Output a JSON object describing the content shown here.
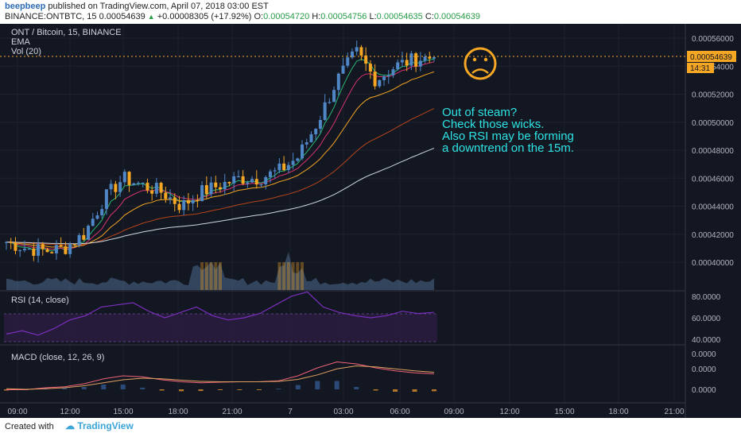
{
  "header": {
    "author": "beepbeep",
    "published": "published on TradingView.com, April 07, 2018 03:00 EST",
    "symbol_line": "BINANCE:ONTBTC, 15  0.00054639",
    "change": "+0.00008305 (+17.92%)",
    "o_label": "O:",
    "o_value": "0.00054720",
    "h_label": "H:",
    "h_value": "0.00054756",
    "l_label": "L:",
    "l_value": "0.00054635",
    "c_label": "C:",
    "c_value": "0.00054639"
  },
  "legend": {
    "title": "ONT / Bitcoin, 15, BINANCE",
    "ema": "EMA",
    "vol": "Vol (20)",
    "rsi": "RSI (14, close)",
    "macd": "MACD (close, 12, 26, 9)"
  },
  "annotation": {
    "emoji": "☹",
    "lines": [
      "Out of steam?",
      "Check those wicks.",
      "Also RSI may be forming",
      "a downtrend on the 15m."
    ]
  },
  "price_tag": {
    "value": "0.00054639",
    "timer": "14:31"
  },
  "footer": {
    "made": "Created with",
    "brand": "TradingView"
  },
  "colors": {
    "up": "#4f86c6",
    "down": "#f5a623",
    "annotation": "#2ee3e3",
    "emoji": "#f5a623",
    "rsi": "#7b2fbe"
  },
  "chart_data": [
    {
      "type": "candlestick",
      "title": "ONT / Bitcoin, 15, BINANCE",
      "y_ticks": [
        "0.00056000",
        "0.00054000",
        "0.00052000",
        "0.00050000",
        "0.00048000",
        "0.00046000",
        "0.00044000",
        "0.00042000",
        "0.00040000"
      ],
      "ylim": [
        0.000392,
        0.000565
      ],
      "x_ticks": [
        "09:00",
        "12:00",
        "15:00",
        "18:00",
        "21:00",
        "7",
        "03:00",
        "06:00",
        "09:00",
        "12:00",
        "15:00",
        "18:00",
        "21:00"
      ],
      "close_approx": [
        0.0004145,
        0.00041,
        0.000408,
        0.00041,
        0.00042,
        0.000445,
        0.00046,
        0.000455,
        0.00045,
        0.00044,
        0.00045,
        0.000455,
        0.00046,
        0.00046,
        0.000465,
        0.000475,
        0.0005,
        0.00053,
        0.00055,
        0.00053,
        0.00054,
        0.000545,
        0.0005464
      ],
      "volume_ylim": [
        0,
        1
      ]
    },
    {
      "type": "line",
      "title": "RSI (14, close)",
      "y_ticks": [
        "80.0000",
        "60.0000",
        "40.0000"
      ],
      "ylim": [
        35,
        85
      ],
      "band": [
        30,
        70
      ],
      "values": [
        45,
        48,
        44,
        50,
        58,
        62,
        70,
        72,
        74,
        66,
        60,
        65,
        70,
        62,
        58,
        60,
        64,
        72,
        80,
        84,
        70,
        65,
        62,
        60,
        62,
        66,
        64,
        65
      ]
    },
    {
      "type": "line",
      "title": "MACD (close, 12, 26, 9)",
      "y_ticks": [
        "0.0000",
        "0.0000",
        "0.0000"
      ],
      "macd": [
        -0.1,
        -0.1,
        0,
        0.05,
        0.2,
        0.45,
        0.6,
        0.55,
        0.4,
        0.3,
        0.25,
        0.28,
        0.3,
        0.3,
        0.35,
        0.6,
        1.0,
        1.3,
        1.2,
        1.0,
        0.85,
        0.75,
        0.7
      ],
      "signal": [
        -0.05,
        -0.08,
        -0.05,
        0,
        0.1,
        0.25,
        0.4,
        0.48,
        0.45,
        0.38,
        0.32,
        0.3,
        0.3,
        0.3,
        0.32,
        0.42,
        0.65,
        0.95,
        1.1,
        1.05,
        0.95,
        0.85,
        0.78
      ]
    }
  ]
}
